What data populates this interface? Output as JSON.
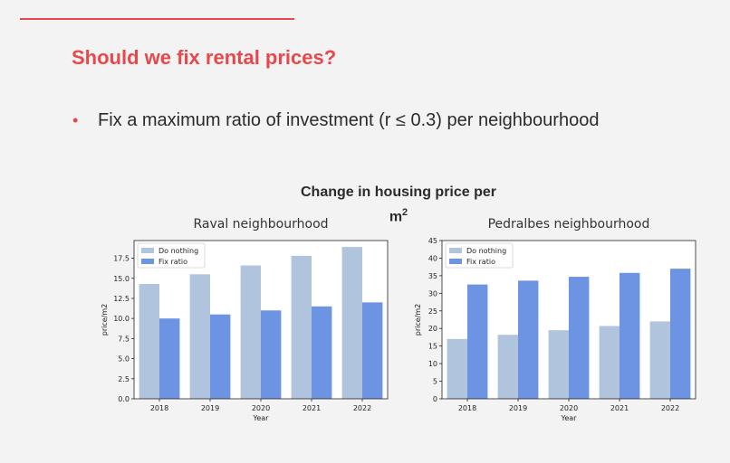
{
  "slide": {
    "title": "Should we fix rental prices?",
    "bullet": "Fix a maximum ratio of investment (r ≤ 0.3) per neighbourhood",
    "figure_title": "Change in housing price per",
    "figure_title_line2": "m",
    "figure_title_sup": "2"
  },
  "colors": {
    "accent": "#e8474b",
    "do_nothing": "#b0c4de",
    "fix_ratio": "#6d94e3"
  },
  "chart_data": [
    {
      "type": "bar",
      "title": "Raval neighbourhood",
      "xlabel": "Year",
      "ylabel": "price/m2",
      "categories": [
        "2018",
        "2019",
        "2020",
        "2021",
        "2022"
      ],
      "ylim": [
        0,
        19.7
      ],
      "yticks": [
        0.0,
        2.5,
        5.0,
        7.5,
        10.0,
        12.5,
        15.0,
        17.5
      ],
      "ytick_labels": [
        "0.0",
        "2.5",
        "5.0",
        "7.5",
        "10.0",
        "12.5",
        "15.0",
        "17.5"
      ],
      "legend": "top-left",
      "series": [
        {
          "name": "Do nothing",
          "values": [
            14.3,
            15.5,
            16.6,
            17.8,
            18.9
          ]
        },
        {
          "name": "Fix ratio",
          "values": [
            10.0,
            10.5,
            11.0,
            11.5,
            12.0
          ]
        }
      ]
    },
    {
      "type": "bar",
      "title": "Pedralbes neighbourhood",
      "xlabel": "Year",
      "ylabel": "price/m2",
      "categories": [
        "2018",
        "2019",
        "2020",
        "2021",
        "2022"
      ],
      "ylim": [
        0,
        45
      ],
      "yticks": [
        0,
        5,
        10,
        15,
        20,
        25,
        30,
        35,
        40,
        45
      ],
      "ytick_labels": [
        "0",
        "5",
        "10",
        "15",
        "20",
        "25",
        "30",
        "35",
        "40",
        "45"
      ],
      "legend": "top-left",
      "series": [
        {
          "name": "Do nothing",
          "values": [
            17.0,
            18.2,
            19.5,
            20.7,
            22.0
          ]
        },
        {
          "name": "Fix ratio",
          "values": [
            32.5,
            33.6,
            34.7,
            35.8,
            37.0
          ]
        }
      ]
    }
  ]
}
